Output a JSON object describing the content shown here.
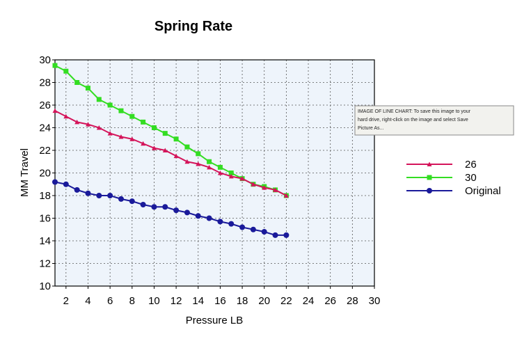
{
  "tooltip": {
    "lines": [
      "IMAGE OF LINE CHART: To save this image to your",
      "hard drive, right-click on the image and select Save",
      "Picture As..."
    ]
  },
  "colors": {
    "plot_background": "#eef4fb",
    "grid": "#555555",
    "frame": "#000000",
    "tooltip_background": "#f2f2ee",
    "tooltip_border": "#888888"
  },
  "chart_data": {
    "type": "line",
    "title": "Spring Rate",
    "xlabel": "Pressure LB",
    "ylabel": "MM Travel",
    "xlim": [
      1,
      30
    ],
    "ylim": [
      10,
      30
    ],
    "xticks": [
      2,
      4,
      6,
      8,
      10,
      12,
      14,
      16,
      18,
      20,
      22,
      24,
      26,
      28,
      30
    ],
    "yticks": [
      10,
      12,
      14,
      16,
      18,
      20,
      22,
      24,
      26,
      28,
      30
    ],
    "grid": true,
    "legend_position": "right",
    "x": [
      1,
      2,
      3,
      4,
      5,
      6,
      7,
      8,
      9,
      10,
      11,
      12,
      13,
      14,
      15,
      16,
      17,
      18,
      19,
      20,
      21,
      22
    ],
    "series": [
      {
        "name": "26",
        "color": "#d4145a",
        "marker": "triangle",
        "values": [
          25.5,
          25.0,
          24.5,
          24.3,
          24.0,
          23.5,
          23.2,
          23.0,
          22.6,
          22.2,
          22.0,
          21.5,
          21.0,
          20.8,
          20.5,
          20.0,
          19.7,
          19.5,
          19.0,
          18.7,
          18.5,
          18.0
        ]
      },
      {
        "name": "30",
        "color": "#33dd22",
        "marker": "square",
        "values": [
          29.5,
          29.0,
          28.0,
          27.5,
          26.5,
          26.0,
          25.5,
          25.0,
          24.5,
          24.0,
          23.5,
          23.0,
          22.3,
          21.7,
          21.0,
          20.5,
          20.0,
          19.5,
          19.0,
          18.8,
          18.5,
          18.0
        ]
      },
      {
        "name": "Original",
        "color": "#1a1a9a",
        "marker": "circle",
        "values": [
          19.2,
          19.0,
          18.5,
          18.2,
          18.0,
          18.0,
          17.7,
          17.5,
          17.2,
          17.0,
          17.0,
          16.7,
          16.5,
          16.2,
          16.0,
          15.7,
          15.5,
          15.2,
          15.0,
          14.8,
          14.5,
          14.5
        ]
      }
    ]
  }
}
